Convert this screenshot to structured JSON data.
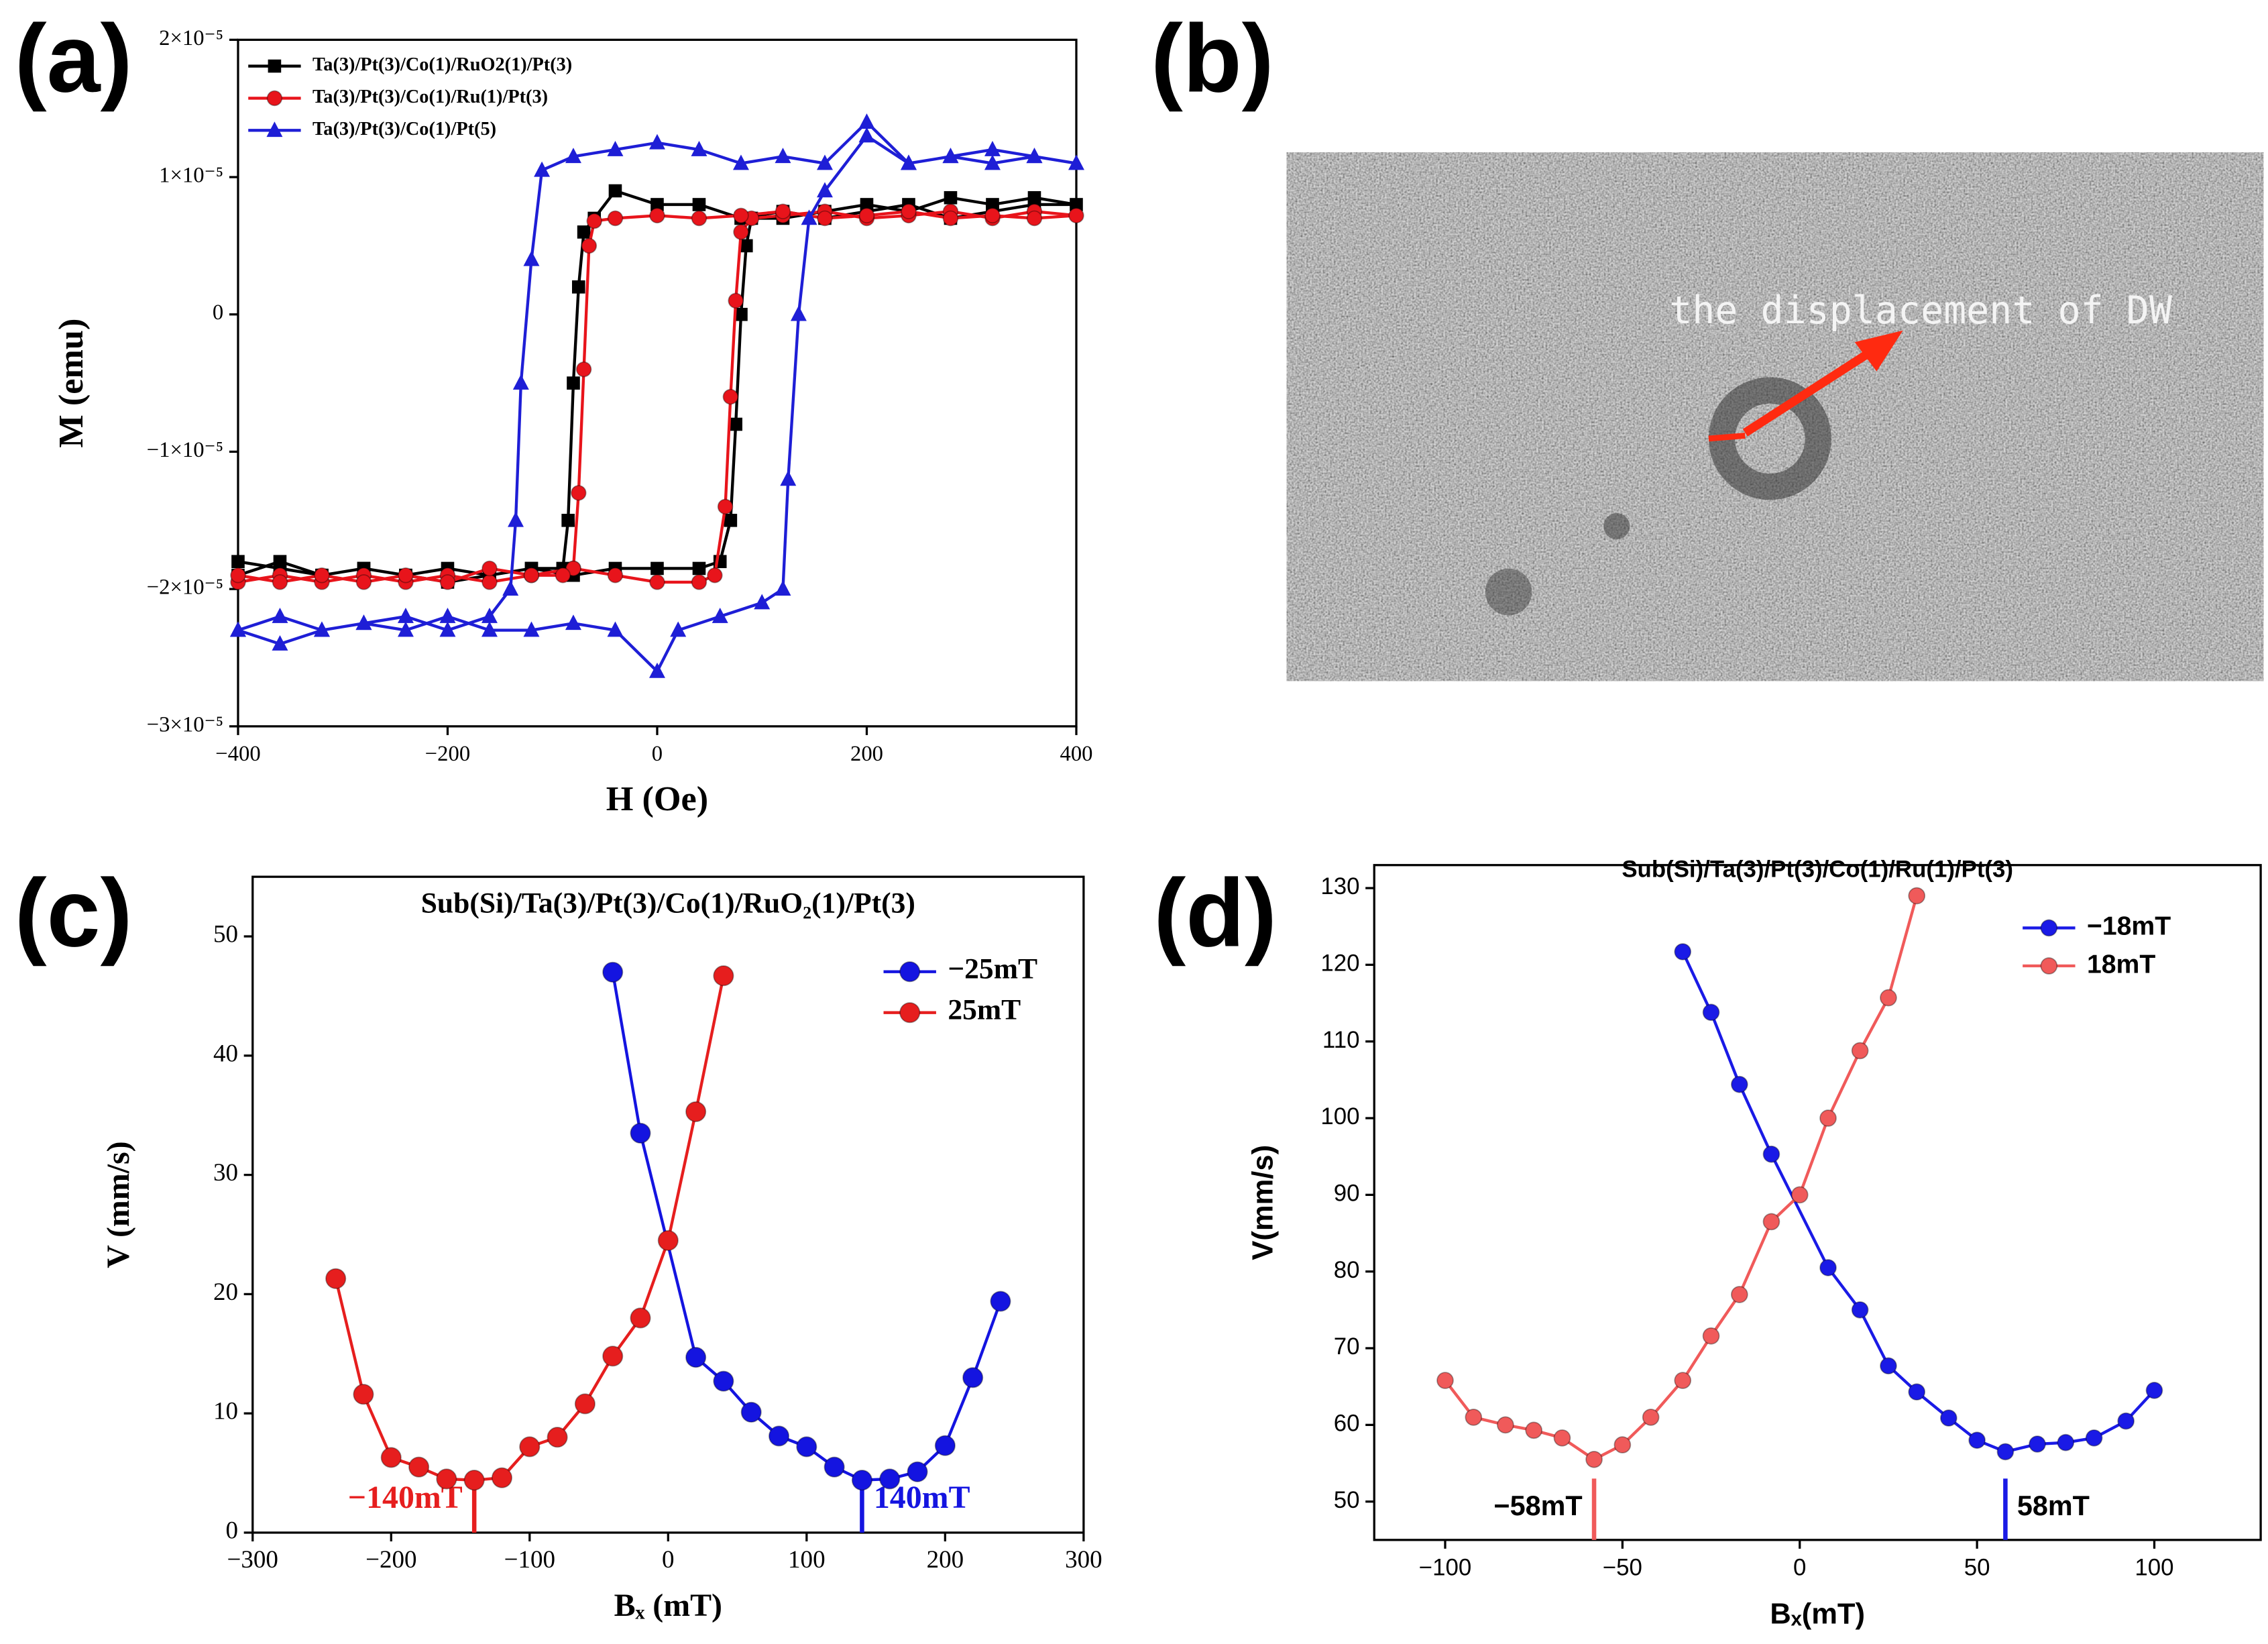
{
  "chart_data": [
    {
      "type": "line",
      "label": "(a)",
      "x_label": "H (Oe)",
      "y_label": "M (emu)",
      "xlim": [
        -400,
        400
      ],
      "xticks": [
        {
          "value": -400,
          "label": "−400"
        },
        {
          "value": -200,
          "label": "−200"
        },
        0,
        200,
        400
      ],
      "ylim": [
        -3e-05,
        2e-05
      ],
      "yticks": [
        {
          "value": -3e-05,
          "label": "−3×10⁻⁵"
        },
        {
          "value": -2e-05,
          "label": "−2×10⁻⁵"
        },
        {
          "value": -1e-05,
          "label": "−1×10⁻⁵"
        },
        0,
        {
          "value": 1e-05,
          "label": "1×10⁻⁵"
        },
        {
          "value": 2e-05,
          "label": "2×10⁻⁵"
        }
      ],
      "legend": "top-left",
      "series": [
        {
          "name": "Ta(3)/Pt(3)/Co(1)/RuO2(1)/Pt(3)",
          "color": "#000000",
          "marker": "square",
          "x": [
            -400,
            -360,
            -320,
            -280,
            -240,
            -200,
            -160,
            -120,
            -80,
            -40,
            0,
            40,
            60,
            70,
            75,
            80,
            85,
            90,
            120,
            160,
            200,
            240,
            280,
            320,
            360,
            400,
            360,
            320,
            280,
            240,
            200,
            160,
            120,
            80,
            40,
            0,
            -40,
            -60,
            -70,
            -75,
            -80,
            -85,
            -90,
            -120,
            -160,
            -200,
            -240,
            -280,
            -320,
            -360,
            -400
          ],
          "values": [
            -1.8e-05,
            -1.85e-05,
            -1.9e-05,
            -1.85e-05,
            -1.9e-05,
            -1.95e-05,
            -1.9e-05,
            -1.85e-05,
            -1.9e-05,
            -1.85e-05,
            -1.85e-05,
            -1.85e-05,
            -1.8e-05,
            -1.5e-05,
            -8e-06,
            0,
            5e-06,
            7e-06,
            7e-06,
            7.5e-06,
            8e-06,
            7.5e-06,
            8.5e-06,
            8e-06,
            8.5e-06,
            8e-06,
            8e-06,
            7.5e-06,
            7e-06,
            8e-06,
            7.5e-06,
            7e-06,
            7.5e-06,
            7e-06,
            8e-06,
            8e-06,
            9e-06,
            7e-06,
            6e-06,
            2e-06,
            -5e-06,
            -1.5e-05,
            -1.85e-05,
            -1.85e-05,
            -1.9e-05,
            -1.85e-05,
            -1.9e-05,
            -1.85e-05,
            -1.9e-05,
            -1.8e-05,
            -1.9e-05
          ]
        },
        {
          "name": "Ta(3)/Pt(3)/Co(1)/Ru(1)/Pt(3)",
          "color": "#e8141b",
          "marker": "circle",
          "x": [
            -400,
            -360,
            -320,
            -280,
            -240,
            -200,
            -160,
            -120,
            -80,
            -40,
            0,
            40,
            55,
            65,
            70,
            75,
            80,
            90,
            120,
            160,
            200,
            240,
            280,
            320,
            360,
            400,
            360,
            320,
            280,
            240,
            200,
            160,
            120,
            80,
            40,
            0,
            -40,
            -60,
            -65,
            -70,
            -75,
            -80,
            -90,
            -120,
            -160,
            -200,
            -240,
            -280,
            -320,
            -360,
            -400
          ],
          "values": [
            -1.95e-05,
            -1.9e-05,
            -1.95e-05,
            -1.9e-05,
            -1.95e-05,
            -1.9e-05,
            -1.95e-05,
            -1.9e-05,
            -1.85e-05,
            -1.9e-05,
            -1.95e-05,
            -1.95e-05,
            -1.9e-05,
            -1.4e-05,
            -6e-06,
            1e-06,
            6e-06,
            7e-06,
            7.2e-06,
            7.5e-06,
            7e-06,
            7.2e-06,
            7.5e-06,
            7e-06,
            7.5e-06,
            7.2e-06,
            7e-06,
            7.2e-06,
            7e-06,
            7.5e-06,
            7.2e-06,
            7e-06,
            7.5e-06,
            7.2e-06,
            7e-06,
            7.2e-06,
            7e-06,
            6.8e-06,
            5e-06,
            -4e-06,
            -1.3e-05,
            -1.85e-05,
            -1.9e-05,
            -1.9e-05,
            -1.85e-05,
            -1.95e-05,
            -1.9e-05,
            -1.95e-05,
            -1.9e-05,
            -1.95e-05,
            -1.9e-05
          ]
        },
        {
          "name": "Ta(3)/Pt(3)/Co(1)/Pt(5)",
          "color": "#1e1ed6",
          "marker": "triangle",
          "x": [
            -400,
            -360,
            -320,
            -280,
            -240,
            -200,
            -160,
            -120,
            -80,
            -40,
            0,
            20,
            60,
            100,
            120,
            125,
            135,
            145,
            160,
            200,
            240,
            280,
            320,
            360,
            400,
            360,
            320,
            280,
            240,
            200,
            160,
            120,
            80,
            40,
            0,
            -40,
            -80,
            -110,
            -120,
            -130,
            -135,
            -140,
            -160,
            -200,
            -240,
            -280,
            -320,
            -360,
            -400
          ],
          "values": [
            -2.3e-05,
            -2.4e-05,
            -2.3e-05,
            -2.25e-05,
            -2.3e-05,
            -2.2e-05,
            -2.3e-05,
            -2.3e-05,
            -2.25e-05,
            -2.3e-05,
            -2.6e-05,
            -2.3e-05,
            -2.2e-05,
            -2.1e-05,
            -2e-05,
            -1.2e-05,
            0,
            7e-06,
            9e-06,
            1.3e-05,
            1.1e-05,
            1.15e-05,
            1.1e-05,
            1.15e-05,
            1.1e-05,
            1.15e-05,
            1.2e-05,
            1.15e-05,
            1.1e-05,
            1.4e-05,
            1.1e-05,
            1.15e-05,
            1.1e-05,
            1.2e-05,
            1.25e-05,
            1.2e-05,
            1.15e-05,
            1.05e-05,
            4e-06,
            -5e-06,
            -1.5e-05,
            -2e-05,
            -2.2e-05,
            -2.3e-05,
            -2.2e-05,
            -2.25e-05,
            -2.3e-05,
            -2.2e-05,
            -2.3e-05
          ]
        }
      ]
    },
    {
      "type": "image",
      "label": "(b)",
      "annotation": "the displacement of DW"
    },
    {
      "type": "line",
      "label": "(c)",
      "title": "Sub(Si)/Ta(3)/Pt(3)/Co(1)/RuO₂(1)/Pt(3)",
      "x_label": "Bₓ (mT)",
      "y_label": "V (mm/s)",
      "xlim": [
        -300,
        300
      ],
      "xticks": [
        {
          "value": -300,
          "label": "−300"
        },
        {
          "value": -200,
          "label": "−200"
        },
        {
          "value": -100,
          "label": "−100"
        },
        0,
        100,
        200,
        300
      ],
      "ylim": [
        0,
        55
      ],
      "yticks": [
        0,
        10,
        20,
        30,
        40,
        50
      ],
      "legend": "top-right",
      "series": [
        {
          "name": "−25mT",
          "color": "#1414e0",
          "marker": "circle",
          "x": [
            -40,
            -20,
            20,
            40,
            60,
            80,
            100,
            120,
            140,
            160,
            180,
            200,
            220,
            240
          ],
          "values": [
            47,
            33.5,
            14.7,
            12.7,
            10.1,
            8.1,
            7.2,
            5.5,
            4.4,
            4.5,
            5.1,
            7.3,
            13,
            19.4
          ]
        },
        {
          "name": "25mT",
          "color": "#e61e1e",
          "marker": "circle",
          "x": [
            -240,
            -220,
            -200,
            -180,
            -160,
            -140,
            -120,
            -100,
            -80,
            -60,
            -40,
            -20,
            0,
            20,
            40
          ],
          "values": [
            21.3,
            11.6,
            6.3,
            5.5,
            4.5,
            4.4,
            4.6,
            7.2,
            8,
            10.8,
            14.8,
            18,
            24.5,
            35.3,
            46.7
          ]
        }
      ],
      "annotations": [
        {
          "text": "−140mT",
          "x": -140,
          "color": "#e61e1e"
        },
        {
          "text": "140mT",
          "x": 140,
          "color": "#1414e0"
        }
      ]
    },
    {
      "type": "line",
      "label": "(d)",
      "title": "Sub(Si)/Ta(3)/Pt(3)/Co(1)/Ru(1)/Pt(3)",
      "x_label": "Bₓ(mT)",
      "y_label": "V(mm/s)",
      "xlim": [
        -120,
        130
      ],
      "xticks": [
        {
          "value": -100,
          "label": "−100"
        },
        {
          "value": -50,
          "label": "−50"
        },
        0,
        50,
        100
      ],
      "ylim": [
        45,
        133
      ],
      "yticks": [
        50,
        60,
        70,
        80,
        90,
        100,
        110,
        120,
        130
      ],
      "legend": "top-right",
      "series": [
        {
          "name": "−18mT",
          "color": "#1a1ae6",
          "marker": "circle",
          "x": [
            -33,
            -25,
            -17,
            -8,
            8,
            17,
            25,
            33,
            42,
            50,
            58,
            67,
            75,
            83,
            92,
            100
          ],
          "values": [
            121.7,
            113.8,
            104.4,
            95.3,
            80.5,
            75,
            67.7,
            64.3,
            60.9,
            58,
            56.5,
            57.5,
            57.7,
            58.3,
            60.5,
            64.5
          ]
        },
        {
          "name": "18mT",
          "color": "#f05a5a",
          "marker": "circle",
          "x": [
            -100,
            -92,
            -83,
            -75,
            -67,
            -58,
            -50,
            -42,
            -33,
            -25,
            -17,
            -8,
            0,
            8,
            17,
            25,
            33
          ],
          "values": [
            65.8,
            61,
            60,
            59.3,
            58.3,
            55.5,
            57.4,
            61,
            65.8,
            71.6,
            77,
            86.5,
            90,
            100,
            108.8,
            115.7,
            129
          ]
        }
      ],
      "annotations": [
        {
          "text": "−58mT",
          "x": -58,
          "color": "#f05a5a"
        },
        {
          "text": "58mT",
          "x": 58,
          "color": "#1a1ae6"
        }
      ]
    }
  ]
}
